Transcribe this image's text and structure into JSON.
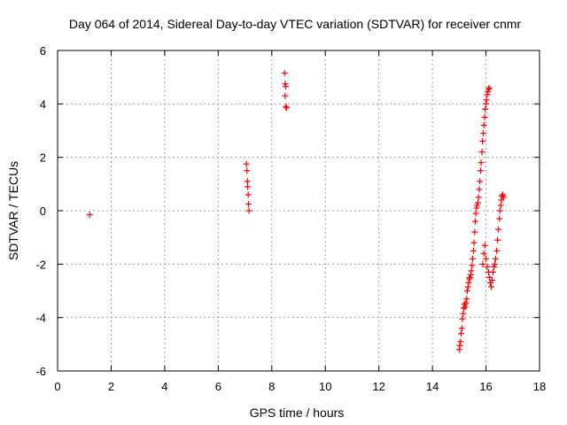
{
  "chart_data": {
    "type": "scatter",
    "title": "Day 064 of 2014, Sidereal Day-to-day VTEC variation (SDTVAR) for receiver cnmr",
    "xlabel": "GPS time / hours",
    "ylabel": "SDTVAR / TECUs",
    "xlim": [
      0,
      18
    ],
    "ylim": [
      -6,
      6
    ],
    "grid": true,
    "marker": "+",
    "marker_color": "#ff0000",
    "x_ticks": [
      {
        "value": 0,
        "label": "0"
      },
      {
        "value": 2,
        "label": "2"
      },
      {
        "value": 4,
        "label": "4"
      },
      {
        "value": 6,
        "label": "6"
      },
      {
        "value": 8,
        "label": "8"
      },
      {
        "value": 10,
        "label": "10"
      },
      {
        "value": 12,
        "label": "12"
      },
      {
        "value": 14,
        "label": "14"
      },
      {
        "value": 16,
        "label": "16"
      },
      {
        "value": 18,
        "label": "18"
      }
    ],
    "y_ticks": [
      {
        "value": -6,
        "label": "-6"
      },
      {
        "value": -4,
        "label": "-4"
      },
      {
        "value": -2,
        "label": "-2"
      },
      {
        "value": 0,
        "label": "0"
      },
      {
        "value": 2,
        "label": "2"
      },
      {
        "value": 4,
        "label": "4"
      },
      {
        "value": 6,
        "label": "6"
      }
    ],
    "series": [
      {
        "name": "SDTVAR",
        "points": [
          [
            1.2,
            -0.15
          ],
          [
            7.05,
            1.75
          ],
          [
            7.07,
            1.5
          ],
          [
            7.09,
            1.1
          ],
          [
            7.1,
            0.9
          ],
          [
            7.12,
            0.6
          ],
          [
            7.13,
            0.25
          ],
          [
            7.15,
            0.0
          ],
          [
            8.48,
            5.15
          ],
          [
            8.5,
            4.75
          ],
          [
            8.52,
            4.65
          ],
          [
            8.5,
            4.3
          ],
          [
            8.53,
            3.9
          ],
          [
            8.55,
            3.85
          ],
          [
            15.0,
            -5.2
          ],
          [
            15.02,
            -5.05
          ],
          [
            15.05,
            -4.9
          ],
          [
            15.07,
            -4.6
          ],
          [
            15.1,
            -4.4
          ],
          [
            15.12,
            -4.05
          ],
          [
            15.15,
            -3.85
          ],
          [
            15.17,
            -3.65
          ],
          [
            15.2,
            -3.5
          ],
          [
            15.22,
            -3.6
          ],
          [
            15.25,
            -3.45
          ],
          [
            15.28,
            -3.3
          ],
          [
            15.3,
            -3.0
          ],
          [
            15.33,
            -2.85
          ],
          [
            15.35,
            -2.7
          ],
          [
            15.38,
            -2.55
          ],
          [
            15.4,
            -2.5
          ],
          [
            15.43,
            -2.4
          ],
          [
            15.45,
            -2.25
          ],
          [
            15.48,
            -2.05
          ],
          [
            15.5,
            -1.8
          ],
          [
            15.53,
            -1.5
          ],
          [
            15.55,
            -1.2
          ],
          [
            15.58,
            -0.8
          ],
          [
            15.6,
            -0.4
          ],
          [
            15.62,
            -0.1
          ],
          [
            15.65,
            0.1
          ],
          [
            15.67,
            0.2
          ],
          [
            15.7,
            0.3
          ],
          [
            15.72,
            0.5
          ],
          [
            15.75,
            0.8
          ],
          [
            15.77,
            1.1
          ],
          [
            15.8,
            1.5
          ],
          [
            15.82,
            1.8
          ],
          [
            15.85,
            2.2
          ],
          [
            15.87,
            2.6
          ],
          [
            15.9,
            2.9
          ],
          [
            15.92,
            3.2
          ],
          [
            15.95,
            3.5
          ],
          [
            15.97,
            3.8
          ],
          [
            16.0,
            4.0
          ],
          [
            16.02,
            4.15
          ],
          [
            16.05,
            4.35
          ],
          [
            16.07,
            4.45
          ],
          [
            16.1,
            4.55
          ],
          [
            16.12,
            4.6
          ],
          [
            15.88,
            -2.0
          ],
          [
            15.92,
            -1.6
          ],
          [
            15.96,
            -1.3
          ],
          [
            16.0,
            -1.8
          ],
          [
            16.05,
            -2.1
          ],
          [
            16.1,
            -2.3
          ],
          [
            16.13,
            -2.5
          ],
          [
            16.16,
            -2.7
          ],
          [
            16.2,
            -2.85
          ],
          [
            16.23,
            -2.6
          ],
          [
            16.26,
            -2.3
          ],
          [
            16.3,
            -2.1
          ],
          [
            16.33,
            -2.0
          ],
          [
            16.36,
            -1.8
          ],
          [
            16.4,
            -1.5
          ],
          [
            16.43,
            -1.1
          ],
          [
            16.46,
            -0.7
          ],
          [
            16.5,
            -0.3
          ],
          [
            16.52,
            0.0
          ],
          [
            16.55,
            0.2
          ],
          [
            16.58,
            0.4
          ],
          [
            16.6,
            0.55
          ],
          [
            16.63,
            0.6
          ],
          [
            16.65,
            0.5
          ]
        ]
      }
    ]
  }
}
